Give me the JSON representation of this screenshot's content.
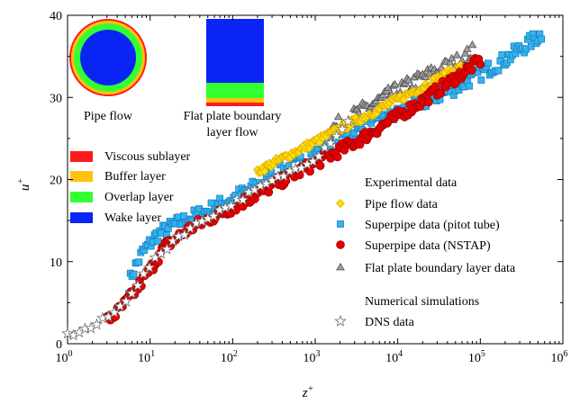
{
  "chart_data": {
    "type": "scatter",
    "xlabel": "z",
    "xlabel_sup": "+",
    "ylabel": "u",
    "ylabel_sup": "+",
    "x_scale": "log",
    "xlim": [
      1,
      1000000
    ],
    "ylim": [
      0,
      40
    ],
    "x_ticks": [
      {
        "value": 1,
        "base": "10",
        "exp": "0"
      },
      {
        "value": 10,
        "base": "10",
        "exp": "1"
      },
      {
        "value": 100,
        "base": "10",
        "exp": "2"
      },
      {
        "value": 1000,
        "base": "10",
        "exp": "3"
      },
      {
        "value": 10000,
        "base": "10",
        "exp": "4"
      },
      {
        "value": 100000,
        "base": "10",
        "exp": "5"
      },
      {
        "value": 1000000,
        "base": "10",
        "exp": "6"
      }
    ],
    "y_ticks": [
      {
        "value": 0,
        "label": "0"
      },
      {
        "value": 10,
        "label": "10"
      },
      {
        "value": 20,
        "label": "20"
      },
      {
        "value": 30,
        "label": "30"
      },
      {
        "value": 40,
        "label": "40"
      }
    ],
    "grid": false,
    "series": [
      {
        "name": "Pipe flow data",
        "marker": "diamond",
        "color": "#ffe000",
        "stroke": "#e0a800",
        "x_range": [
          200,
          60000
        ],
        "y": [
          {
            "x": 200,
            "y": 21.0
          },
          {
            "x": 1000,
            "y": 24.6
          },
          {
            "x": 5000,
            "y": 28.2
          },
          {
            "x": 20000,
            "y": 31.3
          },
          {
            "x": 60000,
            "y": 33.8
          }
        ],
        "spread": 0.45
      },
      {
        "name": "Superpipe data (pitot tube)",
        "marker": "square",
        "color": "#33b5f0",
        "stroke": "#1a7fc0",
        "x_range": [
          5.5,
          550000
        ],
        "y": [
          {
            "x": 5.5,
            "y": 7.0
          },
          {
            "x": 6,
            "y": 8.5
          },
          {
            "x": 8,
            "y": 11.0
          },
          {
            "x": 12,
            "y": 13.2
          },
          {
            "x": 20,
            "y": 14.5
          },
          {
            "x": 50,
            "y": 16.2
          },
          {
            "x": 150,
            "y": 18.6
          },
          {
            "x": 500,
            "y": 21.6
          },
          {
            "x": 2000,
            "y": 24.8
          },
          {
            "x": 10000,
            "y": 28.0
          },
          {
            "x": 50000,
            "y": 31.2
          },
          {
            "x": 200000,
            "y": 34.6
          },
          {
            "x": 550000,
            "y": 37.7
          }
        ],
        "spread": 0.9
      },
      {
        "name": "Superpipe data (NSTAP)",
        "marker": "circle",
        "color": "#e60000",
        "stroke": "#a00000",
        "x_range": [
          3,
          100000
        ],
        "y": [
          {
            "x": 3,
            "y": 2.8
          },
          {
            "x": 4,
            "y": 3.8
          },
          {
            "x": 6,
            "y": 5.8
          },
          {
            "x": 10,
            "y": 9.0
          },
          {
            "x": 15,
            "y": 11.8
          },
          {
            "x": 30,
            "y": 14.0
          },
          {
            "x": 100,
            "y": 16.6
          },
          {
            "x": 500,
            "y": 20.4
          },
          {
            "x": 3000,
            "y": 24.5
          },
          {
            "x": 20000,
            "y": 29.6
          },
          {
            "x": 100000,
            "y": 34.5
          }
        ],
        "spread": 0.7
      },
      {
        "name": "Flat plate boundary layer data",
        "marker": "triangle",
        "color": "#a0a0a0",
        "stroke": "#505050",
        "x_range": [
          1500,
          80000
        ],
        "y": [
          {
            "x": 1500,
            "y": 26.0
          },
          {
            "x": 5000,
            "y": 29.2
          },
          {
            "x": 20000,
            "y": 32.4
          },
          {
            "x": 50000,
            "y": 34.2
          },
          {
            "x": 80000,
            "y": 35.5
          }
        ],
        "spread": 1.0
      },
      {
        "name": "DNS data",
        "marker": "star",
        "color": "#ffffff",
        "stroke": "#707070",
        "x_range": [
          1,
          2500
        ],
        "y": [
          {
            "x": 1,
            "y": 1.0
          },
          {
            "x": 2,
            "y": 2.0
          },
          {
            "x": 4,
            "y": 4.0
          },
          {
            "x": 7,
            "y": 7.2
          },
          {
            "x": 10,
            "y": 9.5
          },
          {
            "x": 20,
            "y": 12.8
          },
          {
            "x": 50,
            "y": 15.4
          },
          {
            "x": 200,
            "y": 18.8
          },
          {
            "x": 1000,
            "y": 22.6
          },
          {
            "x": 2500,
            "y": 27.0
          }
        ],
        "spread": 0.3
      }
    ],
    "legend": {
      "position": "center-right",
      "group_experimental": "Experimental data",
      "group_numerical": "Numerical simulations",
      "entries": [
        {
          "label": "Pipe flow data",
          "marker": "diamond"
        },
        {
          "label": "Superpipe data (pitot tube)",
          "marker": "square"
        },
        {
          "label": "Superpipe data (NSTAP)",
          "marker": "circle"
        },
        {
          "label": "Flat plate boundary layer data",
          "marker": "triangle"
        },
        {
          "label": "DNS data",
          "marker": "star"
        }
      ]
    },
    "inset": {
      "pipe_label": "Pipe flow",
      "plate_label_line1": "Flat plate boundary",
      "plate_label_line2": "layer flow",
      "layers": [
        {
          "label": "Viscous sublayer",
          "color": "#ff1a1a"
        },
        {
          "label": "Buffer layer",
          "color": "#ffc20e"
        },
        {
          "label": "Overlap layer",
          "color": "#33ff33"
        },
        {
          "label": "Wake layer",
          "color": "#0a24f5"
        }
      ]
    }
  }
}
